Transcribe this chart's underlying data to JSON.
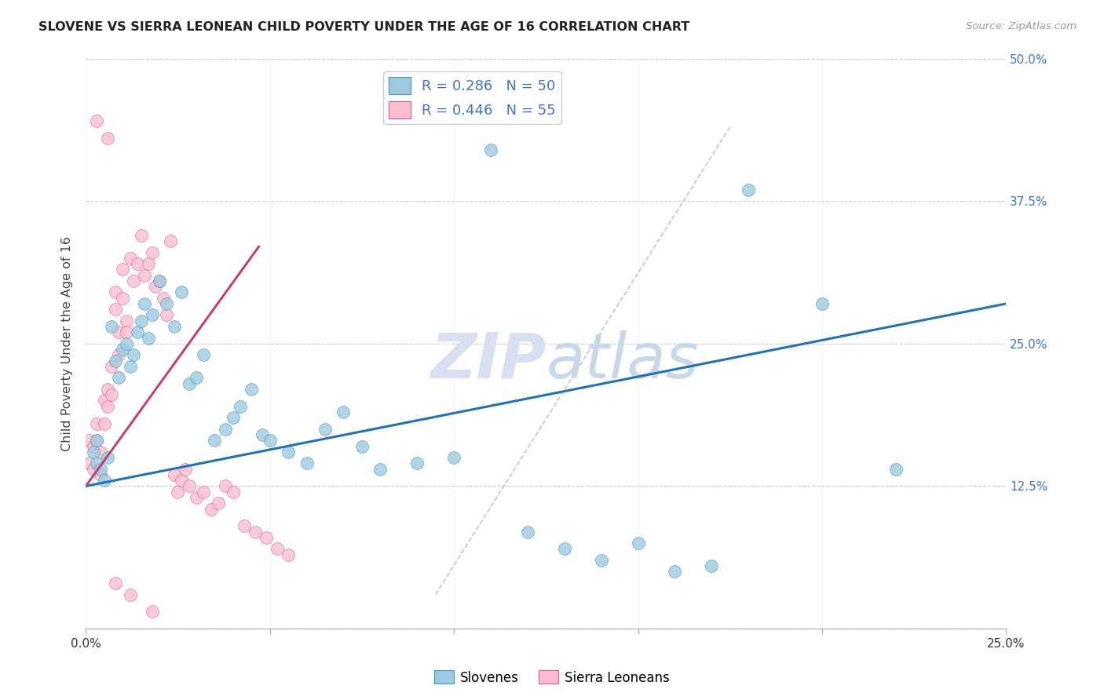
{
  "title": "SLOVENE VS SIERRA LEONEAN CHILD POVERTY UNDER THE AGE OF 16 CORRELATION CHART",
  "source": "Source: ZipAtlas.com",
  "ylabel": "Child Poverty Under the Age of 16",
  "xlim": [
    0.0,
    0.25
  ],
  "ylim": [
    0.0,
    0.5
  ],
  "xticks": [
    0.0,
    0.05,
    0.1,
    0.15,
    0.2,
    0.25
  ],
  "xticklabels": [
    "0.0%",
    "",
    "",
    "",
    "",
    "25.0%"
  ],
  "yticks": [
    0.0,
    0.125,
    0.25,
    0.375,
    0.5
  ],
  "yticklabels": [
    "",
    "12.5%",
    "25.0%",
    "37.5%",
    "50.0%"
  ],
  "legend_R": [
    0.286,
    0.446
  ],
  "legend_N": [
    50,
    55
  ],
  "blue_scatter_color": "#9ecae1",
  "blue_edge_color": "#4292c6",
  "pink_scatter_color": "#fcbfd2",
  "pink_edge_color": "#e05a7a",
  "blue_line_color": "#2171b5",
  "pink_line_color": "#c0446a",
  "watermark_color": "#d8dff0",
  "slovene_x": [
    0.002,
    0.003,
    0.003,
    0.004,
    0.005,
    0.006,
    0.007,
    0.008,
    0.009,
    0.01,
    0.011,
    0.012,
    0.013,
    0.014,
    0.015,
    0.016,
    0.017,
    0.018,
    0.02,
    0.022,
    0.024,
    0.026,
    0.028,
    0.03,
    0.032,
    0.035,
    0.038,
    0.04,
    0.042,
    0.045,
    0.048,
    0.05,
    0.055,
    0.06,
    0.065,
    0.07,
    0.075,
    0.08,
    0.09,
    0.1,
    0.11,
    0.12,
    0.13,
    0.14,
    0.15,
    0.16,
    0.17,
    0.18,
    0.2,
    0.22
  ],
  "slovene_y": [
    0.155,
    0.145,
    0.165,
    0.14,
    0.13,
    0.15,
    0.265,
    0.235,
    0.22,
    0.245,
    0.25,
    0.23,
    0.24,
    0.26,
    0.27,
    0.285,
    0.255,
    0.275,
    0.305,
    0.285,
    0.265,
    0.295,
    0.215,
    0.22,
    0.24,
    0.165,
    0.175,
    0.185,
    0.195,
    0.21,
    0.17,
    0.165,
    0.155,
    0.145,
    0.175,
    0.19,
    0.16,
    0.14,
    0.145,
    0.15,
    0.42,
    0.085,
    0.07,
    0.06,
    0.075,
    0.05,
    0.055,
    0.385,
    0.285,
    0.14
  ],
  "sierra_x": [
    0.001,
    0.001,
    0.002,
    0.002,
    0.003,
    0.003,
    0.004,
    0.004,
    0.005,
    0.005,
    0.006,
    0.006,
    0.007,
    0.007,
    0.008,
    0.008,
    0.009,
    0.009,
    0.01,
    0.01,
    0.011,
    0.011,
    0.012,
    0.013,
    0.014,
    0.015,
    0.016,
    0.017,
    0.018,
    0.019,
    0.02,
    0.021,
    0.022,
    0.023,
    0.024,
    0.025,
    0.026,
    0.027,
    0.028,
    0.03,
    0.032,
    0.034,
    0.036,
    0.038,
    0.04,
    0.043,
    0.046,
    0.049,
    0.052,
    0.055,
    0.003,
    0.006,
    0.008,
    0.012,
    0.018
  ],
  "sierra_y": [
    0.165,
    0.145,
    0.16,
    0.14,
    0.18,
    0.165,
    0.155,
    0.135,
    0.2,
    0.18,
    0.21,
    0.195,
    0.23,
    0.205,
    0.28,
    0.295,
    0.26,
    0.24,
    0.315,
    0.29,
    0.27,
    0.26,
    0.325,
    0.305,
    0.32,
    0.345,
    0.31,
    0.32,
    0.33,
    0.3,
    0.305,
    0.29,
    0.275,
    0.34,
    0.135,
    0.12,
    0.13,
    0.14,
    0.125,
    0.115,
    0.12,
    0.105,
    0.11,
    0.125,
    0.12,
    0.09,
    0.085,
    0.08,
    0.07,
    0.065,
    0.445,
    0.43,
    0.04,
    0.03,
    0.015
  ],
  "blue_trend_x": [
    0.0,
    0.25
  ],
  "blue_trend_y": [
    0.125,
    0.285
  ],
  "pink_trend_x": [
    0.0,
    0.047
  ],
  "pink_trend_y": [
    0.125,
    0.335
  ],
  "ref_line_x": [
    0.095,
    0.175
  ],
  "ref_line_y": [
    0.03,
    0.44
  ]
}
